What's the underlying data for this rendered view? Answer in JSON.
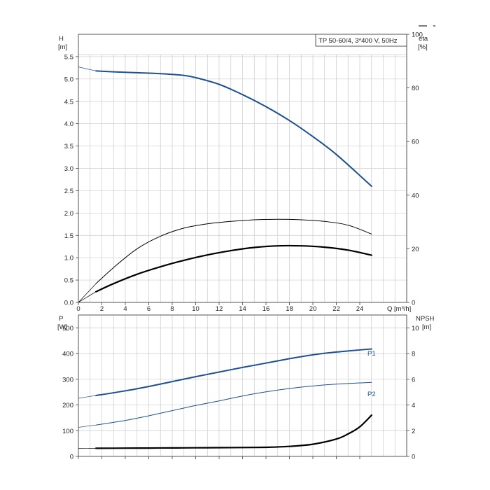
{
  "chart_data": [
    {
      "type": "line",
      "title": "TP 50-60/4, 3*400 V, 50Hz",
      "xlabel": "Q [m³/h]",
      "x_ticks": [
        0,
        2,
        4,
        6,
        8,
        10,
        12,
        14,
        16,
        18,
        20,
        22,
        24
      ],
      "xlim": [
        0,
        28
      ],
      "y_left": {
        "label_line1": "H",
        "label_line2": "[m]",
        "ylim": [
          0,
          6
        ],
        "ticks": [
          0.0,
          0.5,
          1.0,
          1.5,
          2.0,
          2.5,
          3.0,
          3.5,
          4.0,
          4.5,
          5.0,
          5.5
        ],
        "tick_labels": [
          "0.0",
          "0.5",
          "1.0",
          "1.5",
          "2.0",
          "2.5",
          "3.0",
          "3.5",
          "4.0",
          "4.5",
          "5.0",
          "5.5"
        ]
      },
      "y_right": {
        "label_line1": "eta",
        "label_line2": "[%]",
        "ylim": [
          0,
          100
        ],
        "ticks": [
          0,
          20,
          40,
          60,
          80,
          100
        ],
        "tick_labels": [
          "0",
          "20",
          "40",
          "60",
          "80",
          "100"
        ]
      },
      "grid": true,
      "series": [
        {
          "axis": "left",
          "color": "#1e4f8f",
          "width": 2.0,
          "x": [
            1.5,
            3,
            5,
            7,
            9,
            10,
            12,
            14,
            16,
            18,
            20,
            22,
            25
          ],
          "y": [
            5.18,
            5.16,
            5.14,
            5.12,
            5.08,
            5.03,
            4.88,
            4.65,
            4.38,
            4.07,
            3.71,
            3.31,
            2.6
          ],
          "lead_x": [
            0,
            1.5
          ],
          "lead_y": [
            5.27,
            5.18
          ]
        },
        {
          "axis": "right",
          "color": "#000000",
          "width": 1.0,
          "x": [
            1.5,
            3,
            5,
            7,
            9,
            11,
            13,
            15,
            17,
            19,
            21,
            23,
            25
          ],
          "y": [
            7,
            13,
            20,
            24.7,
            27.7,
            29.3,
            30.2,
            30.8,
            31.0,
            30.8,
            30.2,
            28.8,
            25.5
          ],
          "lead_x": [
            0,
            1.5
          ],
          "lead_y": [
            0,
            7
          ]
        },
        {
          "axis": "right",
          "color": "#000000",
          "width": 2.2,
          "x": [
            1.5,
            3,
            5,
            7,
            9,
            11,
            13,
            15,
            17,
            19,
            21,
            23,
            25
          ],
          "y": [
            4,
            7,
            10.5,
            13.3,
            15.7,
            17.7,
            19.3,
            20.5,
            21.1,
            21.1,
            20.6,
            19.5,
            17.6
          ],
          "lead_x": [
            0,
            1.5
          ],
          "lead_y": [
            0,
            4
          ]
        }
      ]
    },
    {
      "type": "line",
      "xlim": [
        0,
        28
      ],
      "x_ticks": [
        0,
        2,
        4,
        6,
        8,
        10,
        12,
        14,
        16,
        18,
        20,
        22,
        24
      ],
      "y_left": {
        "label_line1": "P",
        "label_line2": "[W]",
        "ylim": [
          0,
          550
        ],
        "ticks": [
          0,
          100,
          200,
          300,
          400,
          500
        ],
        "tick_labels": [
          "0",
          "100",
          "200",
          "300",
          "400",
          "500"
        ]
      },
      "y_right": {
        "label_line1": "NPSH",
        "label_line2": "[m]",
        "ylim": [
          0,
          11
        ],
        "ticks": [
          0,
          2,
          4,
          6,
          8,
          10
        ],
        "tick_labels": [
          "0",
          "2",
          "4",
          "6",
          "8",
          "10"
        ]
      },
      "grid": true,
      "series": [
        {
          "name": "P1",
          "axis": "left",
          "color": "#1e4f8f",
          "width": 2.0,
          "x": [
            1.5,
            4,
            6,
            8,
            10,
            12,
            14,
            16,
            18,
            20,
            22,
            25
          ],
          "y": [
            237,
            255,
            272,
            291,
            310,
            328,
            346,
            363,
            380,
            395,
            406,
            418
          ],
          "lead_x": [
            0,
            1.5
          ],
          "lead_y": [
            226,
            237
          ]
        },
        {
          "name": "P2",
          "axis": "left",
          "color": "#1e4f8f",
          "width": 1.0,
          "x": [
            1.5,
            4,
            6,
            8,
            10,
            12,
            14,
            16,
            18,
            20,
            22,
            25
          ],
          "y": [
            122,
            140,
            158,
            178,
            198,
            216,
            235,
            251,
            264,
            274,
            281,
            288
          ],
          "lead_x": [
            0,
            1.5
          ],
          "lead_y": [
            113,
            122
          ]
        },
        {
          "axis": "right",
          "color": "#000000",
          "width": 2.2,
          "x": [
            1.5,
            4,
            6,
            8,
            10,
            12,
            14,
            16,
            18,
            20,
            22,
            23,
            24,
            25
          ],
          "y": [
            0.63,
            0.64,
            0.65,
            0.66,
            0.67,
            0.68,
            0.69,
            0.71,
            0.78,
            0.95,
            1.35,
            1.75,
            2.3,
            3.2
          ],
          "lead_x": [
            0,
            1.5
          ],
          "lead_y": [
            0.62,
            0.63
          ]
        }
      ]
    }
  ]
}
